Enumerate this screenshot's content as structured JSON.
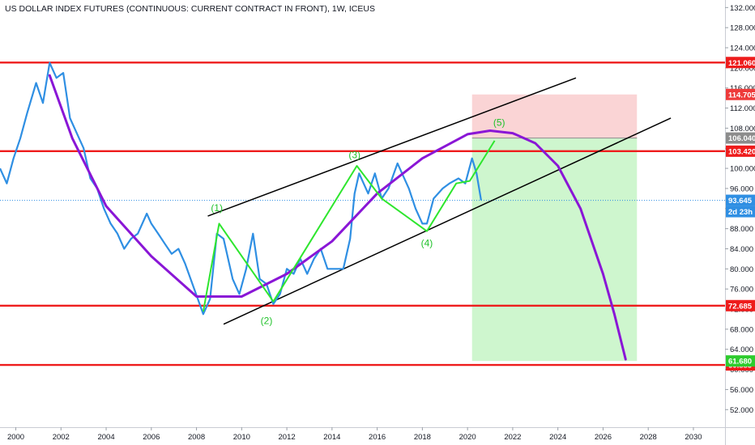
{
  "chart_data": {
    "type": "line",
    "title": "US DOLLAR INDEX FUTURES (CONTINUOUS: CURRENT CONTRACT IN FRONT), 1W, ICEUS",
    "xlim": [
      1999.3,
      2031.4
    ],
    "ylim": [
      48.5,
      133.5
    ],
    "x_ticks": [
      "2000",
      "2002",
      "2004",
      "2006",
      "2008",
      "2010",
      "2012",
      "2014",
      "2016",
      "2018",
      "2020",
      "2022",
      "2024",
      "2026",
      "2028",
      "2030"
    ],
    "y_ticks": [
      "132.000",
      "128.000",
      "124.000",
      "120.000",
      "116.000",
      "112.000",
      "108.000",
      "104.000",
      "100.000",
      "96.000",
      "92.000",
      "88.000",
      "84.000",
      "80.000",
      "76.000",
      "72.000",
      "68.000",
      "64.000",
      "60.000",
      "56.000",
      "52.000"
    ],
    "series": [
      {
        "type": "price",
        "color": "#2f8fe3",
        "points": [
          [
            1999.3,
            100
          ],
          [
            1999.6,
            97
          ],
          [
            1999.9,
            102
          ],
          [
            2000.2,
            106
          ],
          [
            2000.5,
            111
          ],
          [
            2000.9,
            117
          ],
          [
            2001.2,
            113
          ],
          [
            2001.5,
            121
          ],
          [
            2001.8,
            118
          ],
          [
            2002.1,
            119
          ],
          [
            2002.4,
            110
          ],
          [
            2002.8,
            106
          ],
          [
            2003.0,
            104
          ],
          [
            2003.3,
            98
          ],
          [
            2003.6,
            96
          ],
          [
            2003.9,
            92
          ],
          [
            2004.2,
            89
          ],
          [
            2004.5,
            87
          ],
          [
            2004.8,
            84
          ],
          [
            2005.1,
            86
          ],
          [
            2005.4,
            87
          ],
          [
            2005.8,
            91
          ],
          [
            2006.0,
            89
          ],
          [
            2006.3,
            87
          ],
          [
            2006.6,
            85
          ],
          [
            2006.9,
            83
          ],
          [
            2007.2,
            84
          ],
          [
            2007.5,
            81
          ],
          [
            2007.9,
            76
          ],
          [
            2008.3,
            71
          ],
          [
            2008.6,
            74
          ],
          [
            2008.9,
            87
          ],
          [
            2009.2,
            86
          ],
          [
            2009.6,
            78
          ],
          [
            2009.9,
            75
          ],
          [
            2010.2,
            80
          ],
          [
            2010.5,
            87
          ],
          [
            2010.8,
            78
          ],
          [
            2011.1,
            77
          ],
          [
            2011.4,
            73
          ],
          [
            2011.7,
            75
          ],
          [
            2012.0,
            80
          ],
          [
            2012.3,
            79
          ],
          [
            2012.6,
            82
          ],
          [
            2012.9,
            79
          ],
          [
            2013.2,
            82
          ],
          [
            2013.5,
            84
          ],
          [
            2013.8,
            80
          ],
          [
            2014.1,
            80
          ],
          [
            2014.5,
            80
          ],
          [
            2014.8,
            86
          ],
          [
            2015.0,
            95
          ],
          [
            2015.2,
            99
          ],
          [
            2015.6,
            95
          ],
          [
            2015.9,
            99
          ],
          [
            2016.2,
            94
          ],
          [
            2016.5,
            96
          ],
          [
            2016.9,
            101
          ],
          [
            2017.0,
            100
          ],
          [
            2017.4,
            96
          ],
          [
            2017.7,
            92
          ],
          [
            2018.0,
            89
          ],
          [
            2018.2,
            89
          ],
          [
            2018.5,
            94
          ],
          [
            2018.9,
            96
          ],
          [
            2019.2,
            97
          ],
          [
            2019.6,
            98
          ],
          [
            2019.9,
            97
          ],
          [
            2020.2,
            102
          ],
          [
            2020.4,
            99
          ],
          [
            2020.6,
            93.645
          ]
        ]
      },
      {
        "type": "arc",
        "color": "#8a16d6",
        "points": [
          [
            2001.5,
            118.5
          ],
          [
            2002.5,
            106
          ],
          [
            2004,
            92.5
          ],
          [
            2006,
            82.5
          ],
          [
            2008,
            74.5
          ],
          [
            2010,
            74.5
          ],
          [
            2012,
            79
          ],
          [
            2014,
            85.5
          ],
          [
            2016,
            95
          ],
          [
            2018,
            102
          ],
          [
            2020,
            106.8
          ],
          [
            2021,
            107.5
          ],
          [
            2022,
            107
          ],
          [
            2023,
            105
          ],
          [
            2024,
            100.5
          ],
          [
            2025,
            92
          ],
          [
            2026,
            79
          ],
          [
            2026.5,
            71
          ],
          [
            2027,
            62
          ]
        ]
      },
      {
        "type": "wave",
        "color": "#2ee62e",
        "points": [
          [
            2008.3,
            71.5
          ],
          [
            2009.0,
            89
          ],
          [
            2011.4,
            73.5
          ],
          [
            2015.1,
            100.5
          ],
          [
            2016.2,
            94
          ],
          [
            2018.2,
            87.5
          ],
          [
            2019.5,
            97
          ],
          [
            2020.1,
            97.5
          ],
          [
            2021.2,
            105.5
          ]
        ]
      }
    ],
    "levels": [
      {
        "value": 121.06,
        "label": "121.060",
        "color": "#ee1c1c"
      },
      {
        "value": 103.42,
        "label": "103.420",
        "color": "#ee1c1c"
      },
      {
        "value": 72.685,
        "label": "72.685",
        "color": "#ee1c1c"
      },
      {
        "value": 60.885,
        "label": "60.885",
        "color": "#ee1c1c"
      }
    ],
    "channel": [
      {
        "from": [
          2008.5,
          90.5
        ],
        "to": [
          2024.8,
          118
        ]
      },
      {
        "from": [
          2009.2,
          69
        ],
        "to": [
          2029.0,
          110
        ]
      }
    ],
    "position_box": {
      "x_start": 2020.2,
      "x_end": 2027.5,
      "entry": 106.04,
      "stop": 114.705,
      "target": 61.68,
      "stop_color": "#f9c9cb",
      "target_color": "#c9f5c9"
    },
    "last_price": {
      "value": 93.645,
      "label": "93.645",
      "color": "#2f8fe3"
    },
    "countdown": {
      "label": "2d 23h"
    },
    "price_tags": [
      {
        "value": 114.705,
        "label": "114.705",
        "color": "#ee3a3a",
        "text_color": "#ffffff"
      },
      {
        "value": 106.04,
        "label": "106.040",
        "color": "#8c8c8c",
        "text_color": "#ffffff"
      },
      {
        "value": 61.68,
        "label": "61.680",
        "color": "#2ecc2e",
        "text_color": "#ffffff"
      }
    ],
    "wave_labels": [
      {
        "label": "(1)",
        "x": 2008.9,
        "y": 91.5
      },
      {
        "label": "(2)",
        "x": 2011.1,
        "y": 69.0
      },
      {
        "label": "(3)",
        "x": 2015.0,
        "y": 102.0
      },
      {
        "label": "(4)",
        "x": 2018.2,
        "y": 84.5
      },
      {
        "label": "(5)",
        "x": 2021.4,
        "y": 108.5
      }
    ]
  }
}
